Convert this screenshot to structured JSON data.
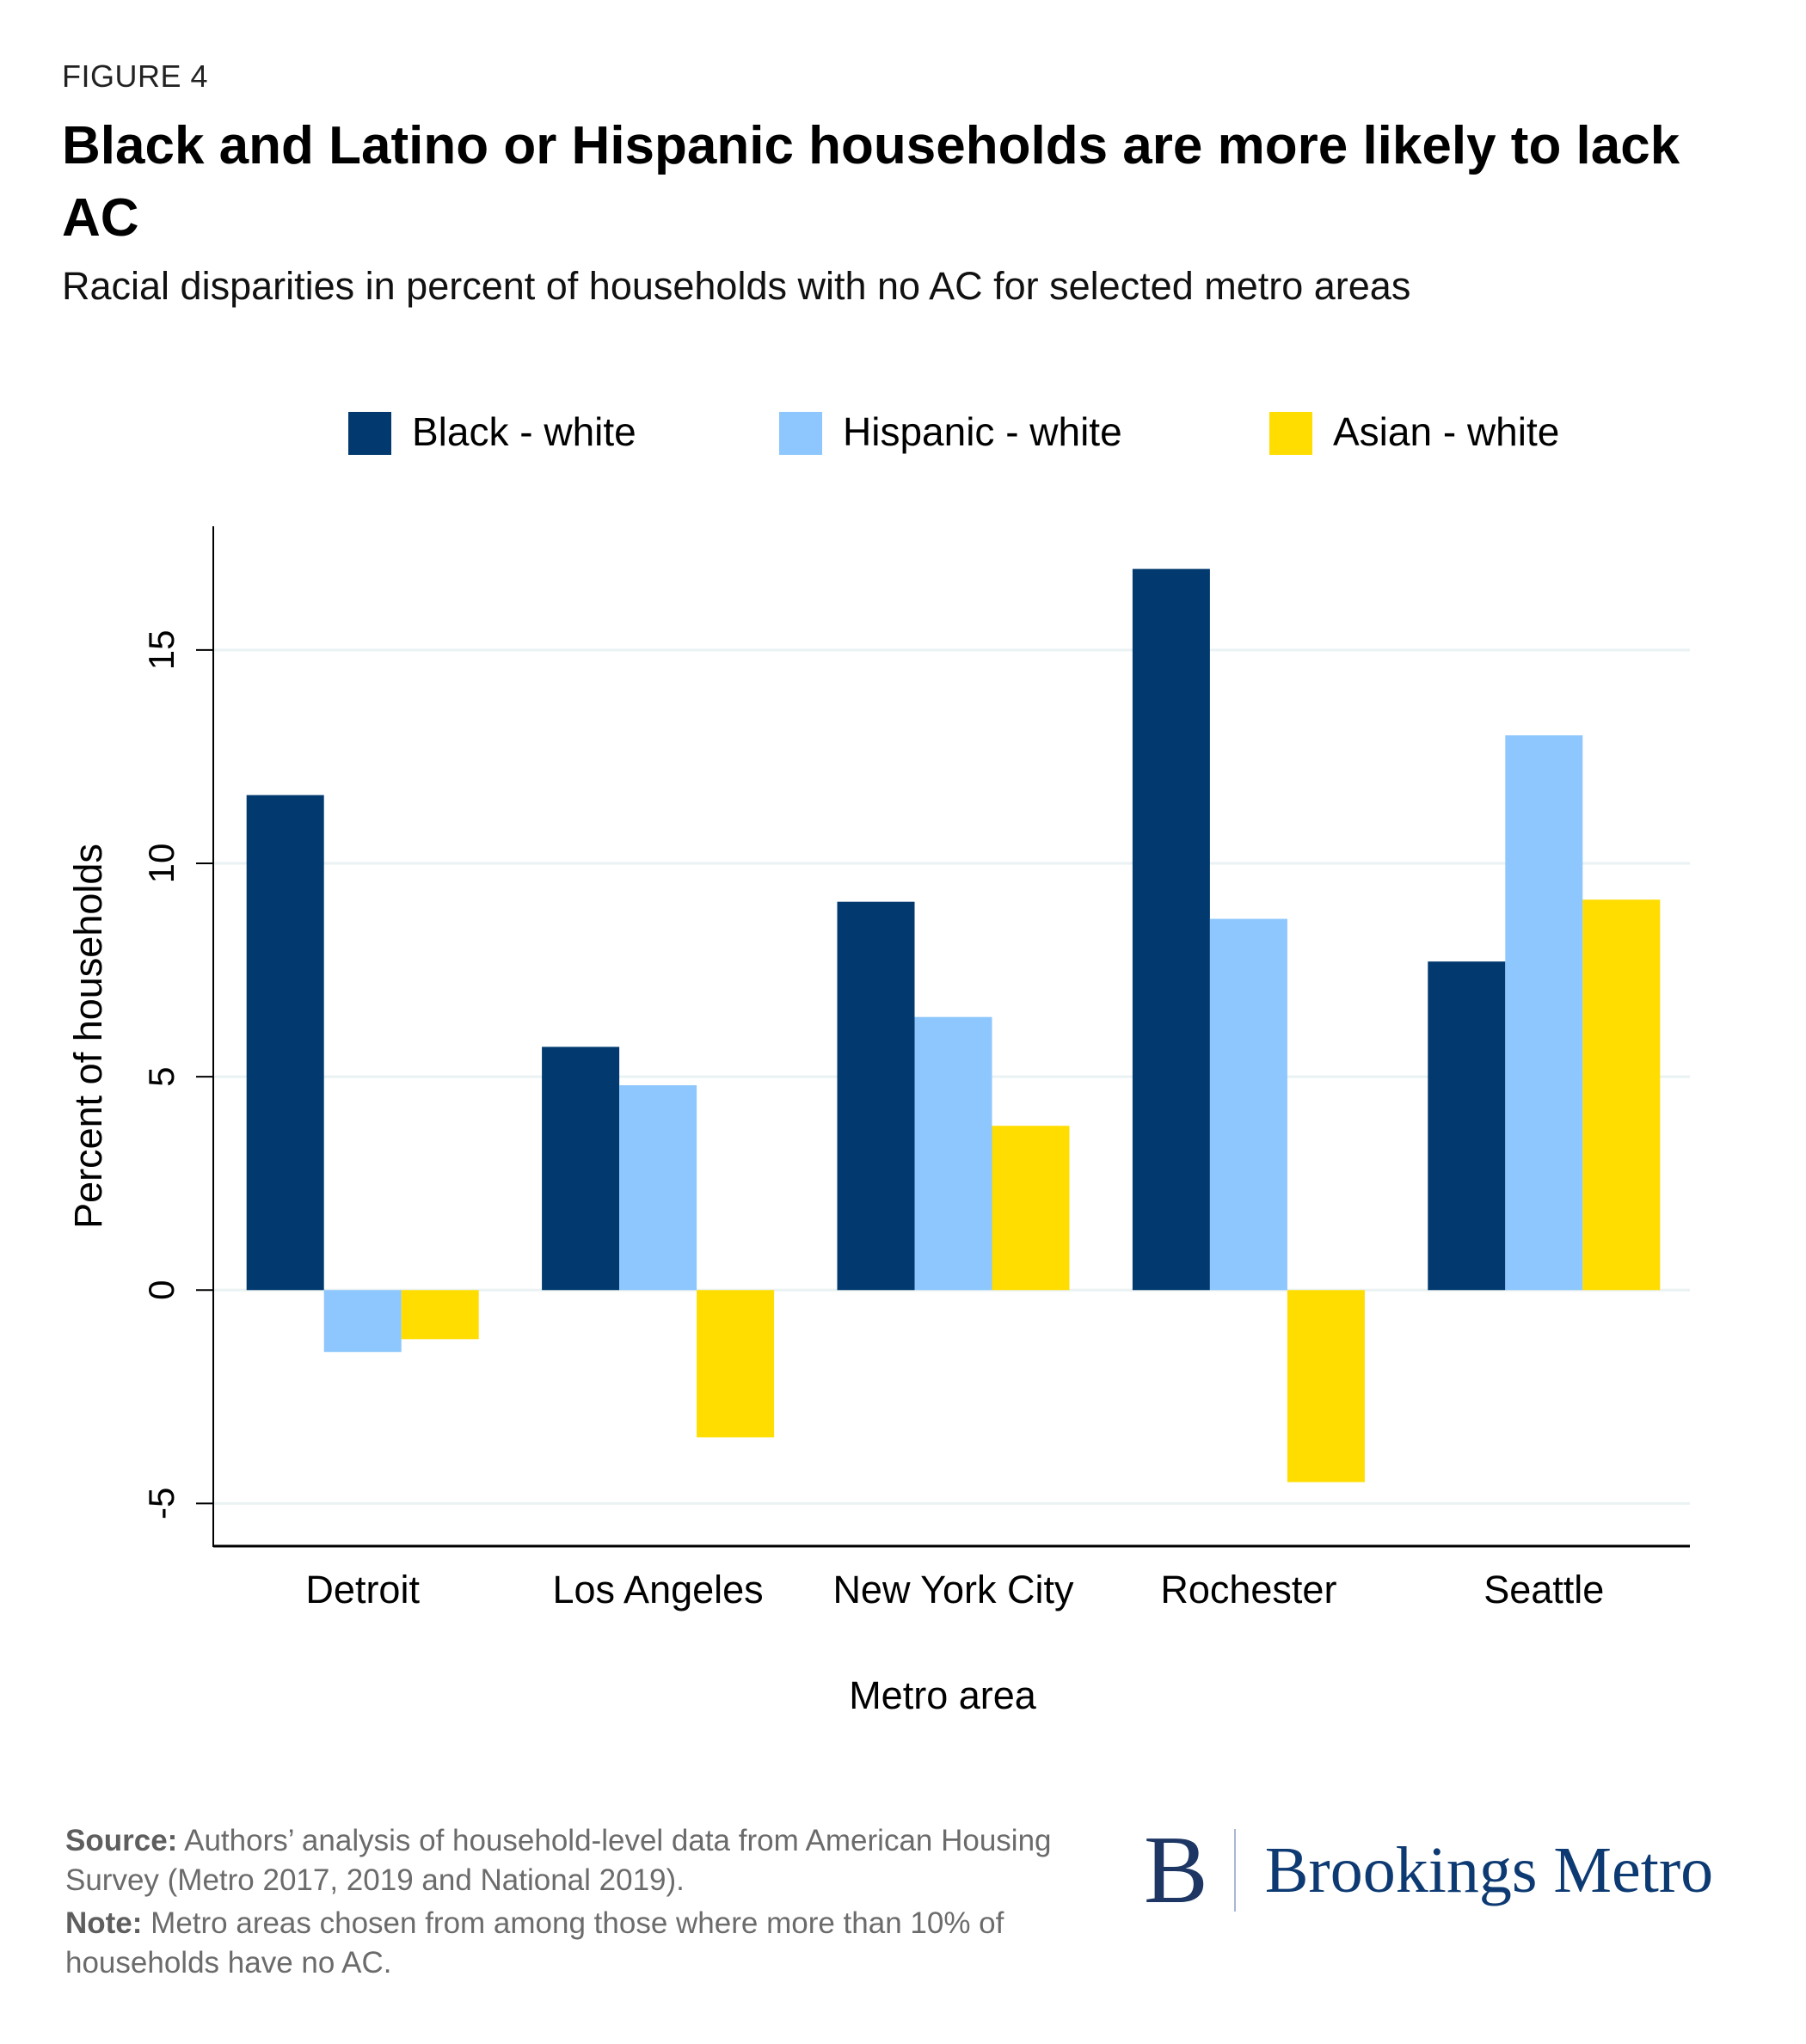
{
  "figure_label": "FIGURE 4",
  "title": "Black and Latino or Hispanic households are more likely to lack AC",
  "subtitle": "Racial disparities in percent of households with no AC for selected metro areas",
  "footer": {
    "source_label": "Source:",
    "source_text": " Authors’ analysis of household-level data from American Housing Survey (Metro 2017, 2019 and National 2019).",
    "note_label": "Note:",
    "note_text": " Metro areas chosen from among those where more than 10% of households have no AC."
  },
  "logo": {
    "mark": "B",
    "text": "Brookings Metro"
  },
  "chart_data": {
    "type": "bar",
    "title": "Black and Latino or Hispanic households are more likely to lack AC",
    "xlabel": "Metro area",
    "ylabel": "Percent of households",
    "categories": [
      "Detroit",
      "Los Angeles",
      "New York City",
      "Rochester",
      "Seattle"
    ],
    "series": [
      {
        "name": "Black - white",
        "color": "#023a70",
        "values": [
          11.6,
          5.7,
          9.1,
          16.9,
          7.7
        ]
      },
      {
        "name": "Hispanic - white",
        "color": "#8dc7fd",
        "values": [
          -1.45,
          4.8,
          6.4,
          8.7,
          13.0
        ]
      },
      {
        "name": "Asian - white",
        "color": "#ffdd00",
        "values": [
          -1.15,
          -3.45,
          3.85,
          -4.5,
          9.15
        ]
      }
    ],
    "yticks": [
      -5,
      0,
      5,
      10,
      15
    ],
    "ylim": [
      -6,
      17.9
    ],
    "grid": true,
    "legend_position": "top"
  }
}
